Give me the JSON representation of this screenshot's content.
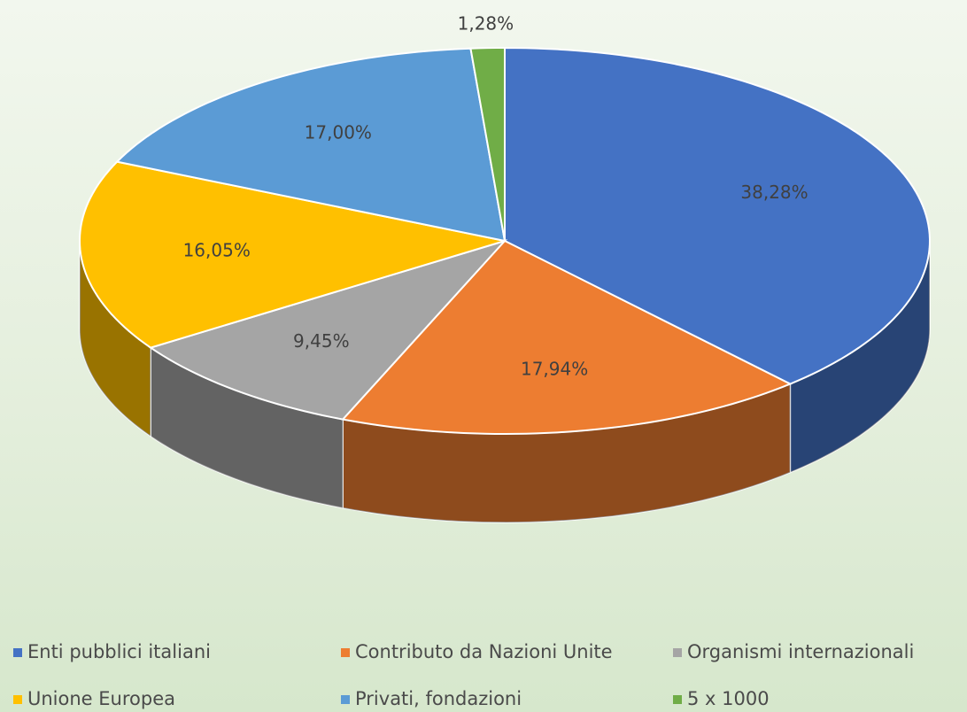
{
  "chart_data": {
    "type": "pie3d",
    "categories": [
      "Enti pubblici italiani",
      "Contributo da Nazioni Unite",
      "Organismi internazionali",
      "Unione Europea",
      "Privati, fondazioni",
      "5 x 1000"
    ],
    "values": [
      38.28,
      17.94,
      9.45,
      16.05,
      17.0,
      1.28
    ],
    "value_labels": [
      "38,28%",
      "17,94%",
      "9,45%",
      "16,05%",
      "17,00%",
      "1,28%"
    ],
    "colors": [
      "#4472c4",
      "#ed7d31",
      "#a5a5a5",
      "#ffc000",
      "#5b9bd5",
      "#70ad47"
    ],
    "legend": "bottom"
  }
}
